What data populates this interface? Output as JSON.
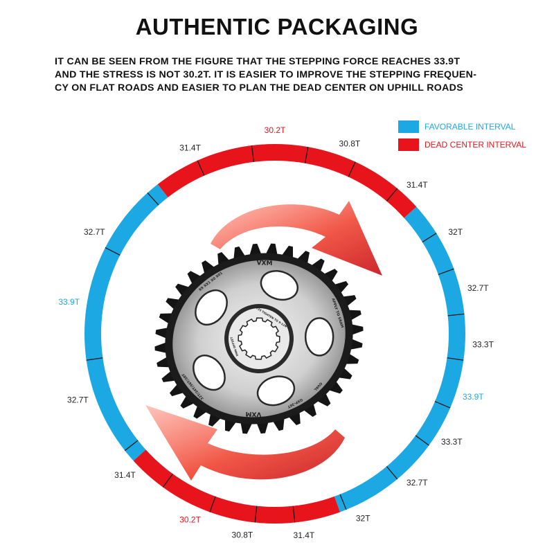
{
  "title": "AUTHENTIC PACKAGING",
  "description": [
    "IT CAN BE SEEN FROM THE FIGURE THAT THE STEPPING FORCE REACHES 33.9T",
    "AND THE STRESS IS NOT 30.2T. IT IS EASIER TO IMPROVE THE STEPPING FREQUEN-",
    "CY ON FLAT ROADS AND EASIER TO PLAN THE DEAD CENTER ON UPHILL ROADS"
  ],
  "legend": [
    {
      "label": "FAVORABLE INTERVAL",
      "color": "#1ca8e3",
      "text_color": "#1ca8e3"
    },
    {
      "label": "DEAD CENTER INTERVAL",
      "color": "#e8141c",
      "text_color": "#e8141c"
    }
  ],
  "colors": {
    "favorable": "#1ca8e3",
    "dead": "#e8141c",
    "label": "#222222"
  },
  "ring_labels": [
    {
      "text": "30.2T",
      "angle": 0,
      "color": "#e8141c"
    },
    {
      "text": "30.8T",
      "angle": 21,
      "color": "#222222"
    },
    {
      "text": "31.4T",
      "angle": 43,
      "color": "#222222"
    },
    {
      "text": "32T",
      "angle": 60,
      "color": "#222222"
    },
    {
      "text": "32.7T",
      "angle": 77,
      "color": "#222222"
    },
    {
      "text": "33.3T",
      "angle": 93,
      "color": "#222222"
    },
    {
      "text": "33.9T",
      "angle": 108,
      "color": "#1ca8e3"
    },
    {
      "text": "33.3T",
      "angle": 122,
      "color": "#222222"
    },
    {
      "text": "32.7T",
      "angle": 137,
      "color": "#222222"
    },
    {
      "text": "32T",
      "angle": 155,
      "color": "#222222"
    },
    {
      "text": "31.4T",
      "angle": 172,
      "color": "#222222"
    },
    {
      "text": "30.8T",
      "angle": 189,
      "color": "#222222"
    },
    {
      "text": "30.2T",
      "angle": 204,
      "color": "#e8141c"
    },
    {
      "text": "31.4T",
      "angle": 226,
      "color": "#222222"
    },
    {
      "text": "32.7T",
      "angle": 251,
      "color": "#222222"
    },
    {
      "text": "33.9T",
      "angle": 279,
      "color": "#1ca8e3"
    },
    {
      "text": "32.7T",
      "angle": 300,
      "color": "#222222"
    },
    {
      "text": "31.4T",
      "angle": 336,
      "color": "#222222"
    }
  ],
  "ring_segments": [
    {
      "type": "dead",
      "start": 322,
      "end": 48
    },
    {
      "type": "favorable",
      "start": 48,
      "end": 160
    },
    {
      "type": "dead",
      "start": 160,
      "end": 228
    },
    {
      "type": "favorable",
      "start": 228,
      "end": 322
    }
  ],
  "ring_ticks": [
    336,
    353,
    10,
    25,
    40,
    58,
    70,
    84,
    98,
    113,
    126,
    140,
    158,
    174,
    186,
    200,
    216,
    232,
    262,
    297,
    318
  ],
  "chainring": {
    "teeth": 36,
    "brand": "VXM",
    "inscriptions": [
      "X9 XX1 X0 X01",
      "APPLY TO SRAM",
      "T25 TIGHTEN TO 9-11N*M",
      "3MM OFFSET",
      "32T/34T/36T/38T",
      "OVAL",
      "GXP-36T"
    ]
  }
}
